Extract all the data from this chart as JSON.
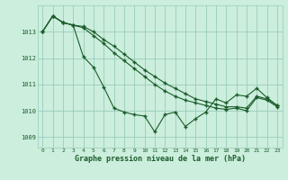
{
  "background_color": "#cceedd",
  "grid_color": "#99ccbb",
  "line_color": "#1a5c2a",
  "xlabel": "Graphe pression niveau de la mer (hPa)",
  "ylim": [
    1008.6,
    1014.0
  ],
  "xlim": [
    -0.5,
    23.5
  ],
  "yticks": [
    1009,
    1010,
    1011,
    1012,
    1013
  ],
  "xticks": [
    0,
    1,
    2,
    3,
    4,
    5,
    6,
    7,
    8,
    9,
    10,
    11,
    12,
    13,
    14,
    15,
    16,
    17,
    18,
    19,
    20,
    21,
    22,
    23
  ],
  "series1": [
    1013.0,
    1013.6,
    1013.35,
    1013.25,
    1012.05,
    1011.65,
    1010.9,
    1010.1,
    1009.95,
    1009.85,
    1009.8,
    1009.2,
    1009.85,
    1009.95,
    1009.4,
    1009.7,
    1009.95,
    1010.45,
    1010.3,
    1010.6,
    1010.55,
    1010.85,
    1010.5,
    1010.2
  ],
  "series2": [
    1013.0,
    1013.6,
    1013.35,
    1013.25,
    1013.15,
    1012.85,
    1012.55,
    1012.2,
    1011.9,
    1011.6,
    1011.3,
    1011.0,
    1010.75,
    1010.55,
    1010.4,
    1010.3,
    1010.2,
    1010.1,
    1010.05,
    1010.1,
    1010.0,
    1010.5,
    1010.4,
    1010.15
  ],
  "series3": [
    1013.0,
    1013.6,
    1013.35,
    1013.25,
    1013.2,
    1013.0,
    1012.7,
    1012.45,
    1012.15,
    1011.85,
    1011.55,
    1011.3,
    1011.05,
    1010.85,
    1010.65,
    1010.45,
    1010.35,
    1010.25,
    1010.15,
    1010.15,
    1010.1,
    1010.55,
    1010.45,
    1010.2
  ]
}
